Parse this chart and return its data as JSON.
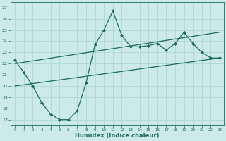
{
  "xlabel": "Humidex (Indice chaleur)",
  "bg_color": "#cceae6",
  "grid_color": "#aad4d0",
  "line_color": "#1a6b60",
  "xlim": [
    -0.5,
    23.5
  ],
  "ylim": [
    16.5,
    27.5
  ],
  "xticks": [
    0,
    1,
    2,
    3,
    4,
    5,
    6,
    7,
    8,
    9,
    10,
    11,
    12,
    13,
    14,
    15,
    16,
    17,
    18,
    19,
    20,
    21,
    22,
    23
  ],
  "yticks": [
    17,
    18,
    19,
    20,
    21,
    22,
    23,
    24,
    25,
    26,
    27
  ],
  "line1_x": [
    0,
    1,
    2,
    3,
    4,
    5,
    6,
    7,
    8,
    9,
    10,
    11,
    12,
    13,
    14,
    15,
    16,
    17,
    18,
    19,
    20,
    21,
    22,
    23
  ],
  "line1_y": [
    22.3,
    21.2,
    20.0,
    18.5,
    17.5,
    17.0,
    17.0,
    17.8,
    20.3,
    23.7,
    25.0,
    26.7,
    24.5,
    23.5,
    23.5,
    23.6,
    23.8,
    23.2,
    23.8,
    24.8,
    23.8,
    23.0,
    22.5,
    22.5
  ],
  "line2_x": [
    0,
    23
  ],
  "line2_y": [
    22.0,
    24.8
  ],
  "line3_x": [
    0,
    23
  ],
  "line3_y": [
    20.0,
    22.5
  ]
}
